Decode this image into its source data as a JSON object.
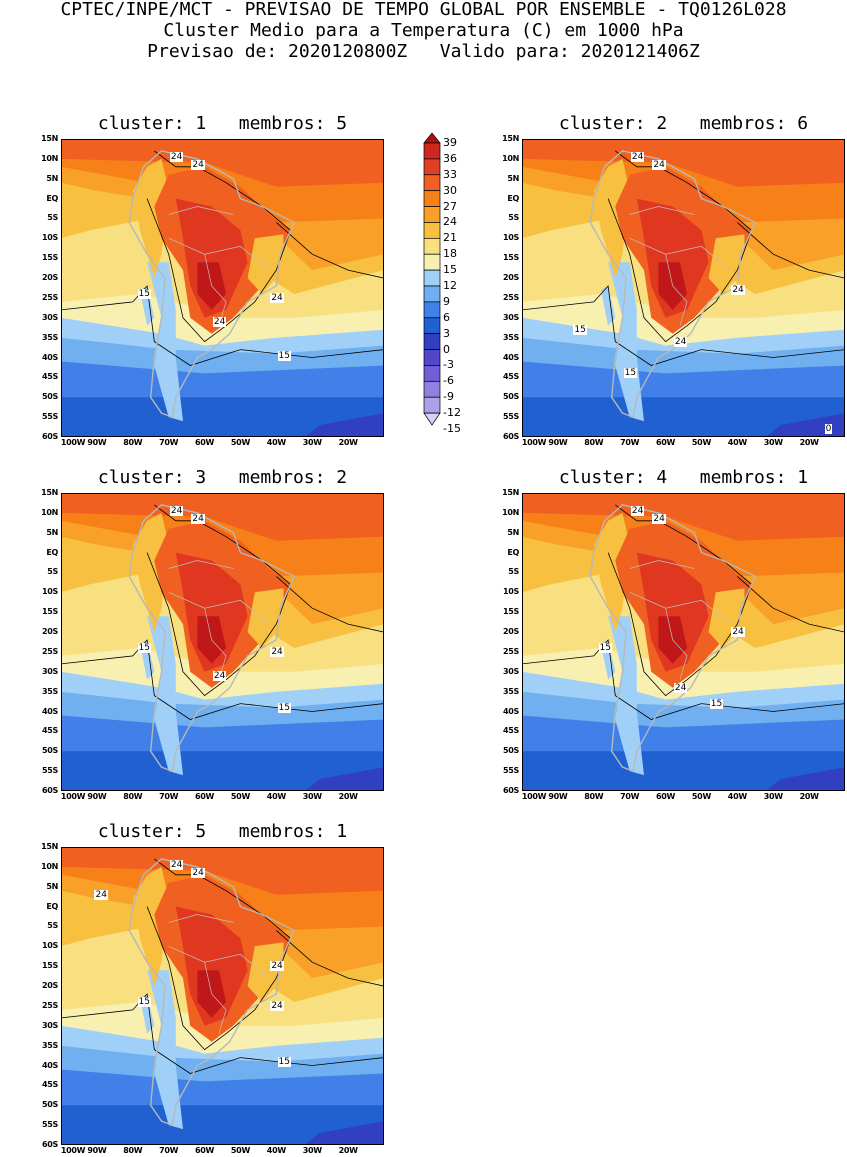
{
  "header": {
    "line1": "CPTEC/INPE/MCT - PREVISAO DE TEMPO GLOBAL POR ENSEMBLE - TQ0126L028",
    "line2": "Cluster Medio para a Temperatura (C) em 1000 hPa",
    "line3": "Previsao de: 2020120800Z   Valido para: 2020121406Z"
  },
  "colorbar": {
    "levels": [
      "39",
      "36",
      "33",
      "30",
      "27",
      "24",
      "21",
      "18",
      "15",
      "12",
      "9",
      "6",
      "3",
      "0",
      "-3",
      "-6",
      "-9",
      "-12",
      "-15"
    ],
    "colors": [
      "#b01010",
      "#d02820",
      "#e04028",
      "#f06020",
      "#f88018",
      "#f8a028",
      "#f8c040",
      "#f8e080",
      "#f8f0b0",
      "#a0d0f8",
      "#70b0f0",
      "#4080e8",
      "#2060d0",
      "#3040c0",
      "#5048c8",
      "#7060d8",
      "#9080e0",
      "#b0a0e8",
      "#d8d0f8"
    ]
  },
  "axes": {
    "lat_labels": [
      "15N",
      "10N",
      "5N",
      "EQ",
      "5S",
      "10S",
      "15S",
      "20S",
      "25S",
      "30S",
      "35S",
      "40S",
      "45S",
      "50S",
      "55S",
      "60S"
    ],
    "lon_labels": [
      "100W",
      "90W",
      "80W",
      "70W",
      "60W",
      "50W",
      "40W",
      "30W",
      "20W"
    ]
  },
  "panels": [
    {
      "title": "cluster: 1   membros: 5",
      "labels": [
        "24",
        "24",
        "24",
        "24",
        "15",
        "15"
      ]
    },
    {
      "title": "cluster: 2   membros: 6",
      "labels": [
        "24",
        "24",
        "24",
        "24",
        "15",
        "15",
        "0"
      ]
    },
    {
      "title": "cluster: 3   membros: 2",
      "labels": [
        "24",
        "24",
        "24",
        "24",
        "15",
        "15"
      ]
    },
    {
      "title": "cluster: 4   membros: 1",
      "labels": [
        "24",
        "24",
        "24",
        "24",
        "15",
        "15"
      ]
    },
    {
      "title": "cluster: 5   membros: 1",
      "labels": [
        "24",
        "24",
        "24",
        "24",
        "24",
        "15",
        "15"
      ]
    }
  ]
}
